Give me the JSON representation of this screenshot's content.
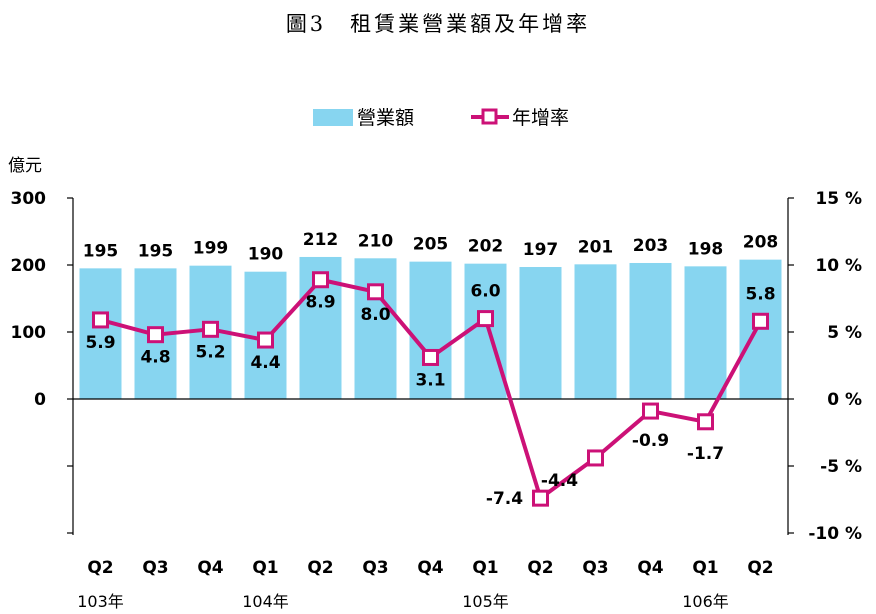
{
  "chart_data": {
    "type": "bar+line",
    "title": "圖3　租賃業營業額及年增率",
    "left_unit": "億元",
    "categories": [
      "Q2",
      "Q3",
      "Q4",
      "Q1",
      "Q2",
      "Q3",
      "Q4",
      "Q1",
      "Q2",
      "Q3",
      "Q4",
      "Q1",
      "Q2"
    ],
    "year_labels": [
      {
        "index": 0,
        "label": "103年"
      },
      {
        "index": 3,
        "label": "104年"
      },
      {
        "index": 7,
        "label": "105年"
      },
      {
        "index": 11,
        "label": "106年"
      }
    ],
    "series": [
      {
        "name": "營業額",
        "type": "bar",
        "axis": "left",
        "color": "#87d5f0",
        "values": [
          195,
          195,
          199,
          190,
          212,
          210,
          205,
          202,
          197,
          201,
          203,
          198,
          208
        ]
      },
      {
        "name": "年增率",
        "type": "line",
        "axis": "right",
        "color": "#cc1177",
        "values": [
          5.9,
          4.8,
          5.2,
          4.4,
          8.9,
          8.0,
          3.1,
          6.0,
          -7.4,
          -4.4,
          -0.9,
          -1.7,
          5.8
        ]
      }
    ],
    "left_axis": {
      "ylim": [
        -200,
        300
      ],
      "ticks": [
        300,
        200,
        100,
        0
      ],
      "tick_labels": [
        "300",
        "200",
        "100",
        "0"
      ]
    },
    "right_axis": {
      "ylim": [
        -10,
        15
      ],
      "ticks": [
        15,
        10,
        5,
        0,
        -5,
        -10
      ],
      "tick_labels": [
        "15 %",
        "10 %",
        "5 %",
        "0 %",
        "-5 %",
        "-10 %"
      ]
    },
    "legend_position": "top-center",
    "grid": false
  }
}
